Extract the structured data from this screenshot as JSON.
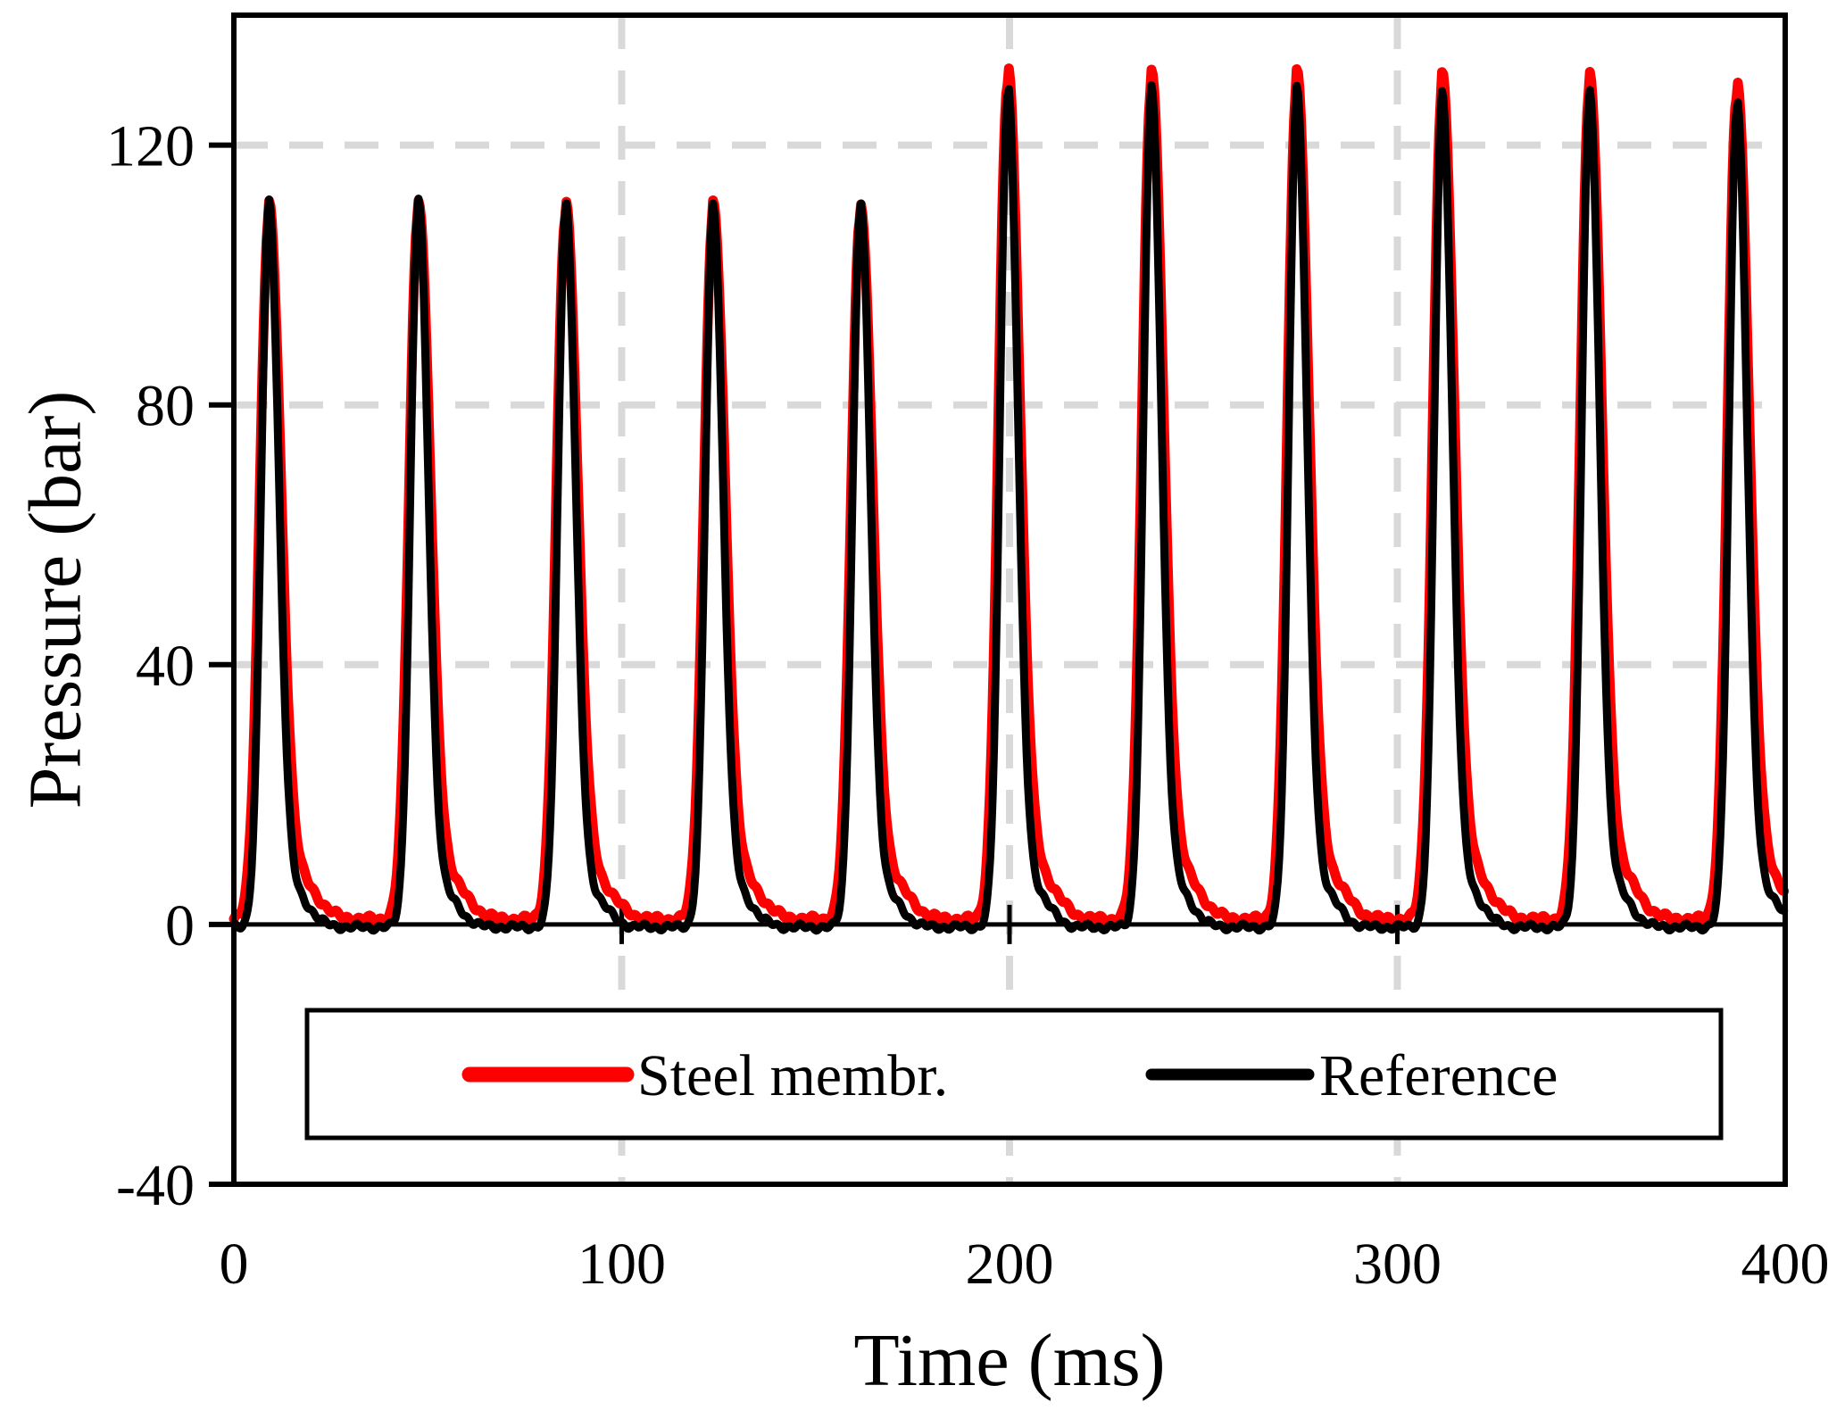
{
  "chart_data": {
    "type": "line",
    "title": "",
    "xlabel": "Time (ms)",
    "ylabel": "Pressure (bar)",
    "xlim": [
      0,
      400
    ],
    "ylim": [
      -40,
      140
    ],
    "x_ticks": [
      0,
      100,
      200,
      300,
      400
    ],
    "y_ticks": [
      -40,
      0,
      40,
      80,
      120
    ],
    "grid": {
      "h_lines": [
        40,
        80,
        120
      ],
      "v_lines": [
        100,
        200,
        300
      ],
      "color": "#d9d9d9",
      "style": "dashed"
    },
    "axis_color": "#000000",
    "zero_line_value": 0,
    "legend": {
      "position": "bottom-inside",
      "entries": [
        {
          "label": "Steel membr.",
          "color": "#ff0000"
        },
        {
          "label": "Reference",
          "color": "#000000"
        }
      ]
    },
    "pulse_period_ms_approx": 37.9,
    "series": [
      {
        "name": "Steel membr.",
        "color": "#ff0000",
        "baseline_bar": 0.8,
        "peak_times_ms": [
          9,
          47.5,
          85.5,
          123.5,
          161.5,
          199.5,
          236.5,
          274,
          311.5,
          349.5,
          387.5
        ],
        "peak_values_bar": [
          108.5,
          109.5,
          109,
          108.5,
          109,
          129.5,
          129,
          129,
          128,
          128.5,
          127.5
        ],
        "pulse": {
          "rise_sigma_ms": 2.35,
          "fall_sigma_ms": 3.05,
          "tail_frac": 0.06,
          "tail_center_ms": 7,
          "tail_sigma_ms": 5
        },
        "ripple_bar": 0.6
      },
      {
        "name": "Reference",
        "color": "#000000",
        "baseline_bar": -0.4,
        "peak_times_ms": [
          9,
          47.5,
          85.5,
          123.5,
          161.5,
          199.5,
          236.5,
          274,
          311.5,
          349.5,
          387.5
        ],
        "peak_values_bar": [
          110,
          110.5,
          110,
          109.5,
          110,
          128,
          127.5,
          127.5,
          126.5,
          127,
          126
        ],
        "pulse": {
          "rise_sigma_ms": 2.0,
          "fall_sigma_ms": 2.6,
          "tail_frac": 0.045,
          "tail_center_ms": 6.5,
          "tail_sigma_ms": 4
        },
        "ripple_bar": 0.55
      }
    ]
  }
}
